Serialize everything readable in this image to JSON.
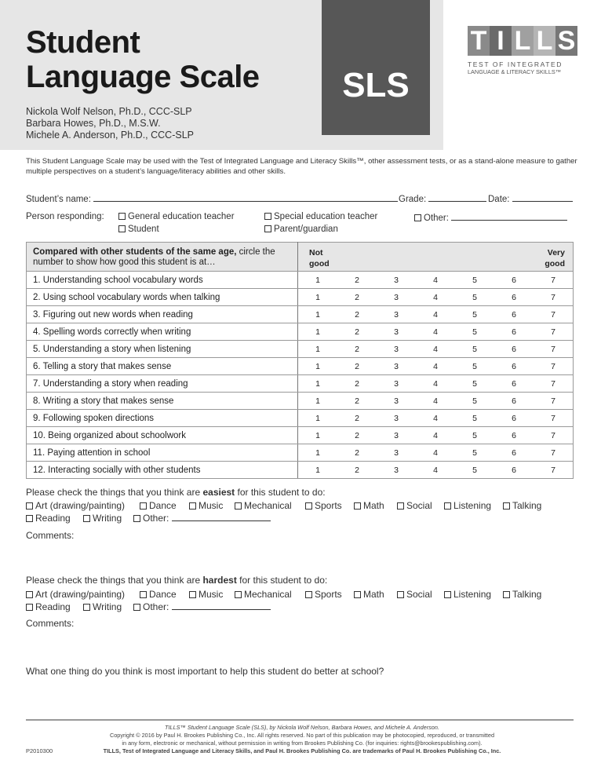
{
  "header": {
    "title_line1": "Student",
    "title_line2": "Language Scale",
    "authors": [
      "Nickola Wolf Nelson, Ph.D., CCC-SLP",
      "Barbara Howes, Ph.D., M.S.W.",
      "Michele A. Anderson, Ph.D., CCC-SLP"
    ],
    "badge": "SLS",
    "logo": {
      "letters": [
        "T",
        "I",
        "L",
        "L",
        "S"
      ],
      "tagline1": "TEST OF INTEGRATED",
      "tagline2": "LANGUAGE & LITERACY SKILLS™",
      "colors": [
        "#8a8a8a",
        "#6a6a6a",
        "#a0a0a0",
        "#b5b5b5",
        "#777777"
      ]
    }
  },
  "intro": "This Student Language Scale may be used with the Test of Integrated Language and Literacy Skills™, other assessment tests, or as a stand-alone measure to gather multiple perspectives on a student’s language/literacy abilities and other skills.",
  "fields": {
    "student_name": "Student’s name:",
    "grade": "Grade:",
    "date": "Date:",
    "person_responding": "Person responding:",
    "responders": [
      "General education teacher",
      "Special education teacher",
      "Other:",
      "Student",
      "Parent/guardian"
    ]
  },
  "table": {
    "header_bold": "Compared with other students of the same age,",
    "header_rest": " circle the number to show how good this student is at…",
    "low_label_1": "Not",
    "low_label_2": "good",
    "high_label_1": "Very",
    "high_label_2": "good",
    "scale": [
      "1",
      "2",
      "3",
      "4",
      "5",
      "6",
      "7"
    ],
    "items": [
      "1. Understanding school vocabulary words",
      "2. Using school vocabulary words when talking",
      "3. Figuring out new words when reading",
      "4. Spelling words correctly when writing",
      "5. Understanding a story when listening",
      "6. Telling a story that makes sense",
      "7. Understanding a story when reading",
      "8. Writing a story that makes sense",
      "9. Following spoken directions",
      "10. Being organized about schoolwork",
      "11. Paying attention in school",
      "12. Interacting socially with other students"
    ]
  },
  "easiest": {
    "prompt_pre": "Please check the things that you think are ",
    "prompt_bold": "easiest",
    "prompt_post": " for this student to do:",
    "comments": "Comments:"
  },
  "hardest": {
    "prompt_pre": "Please check the things that you think are ",
    "prompt_bold": "hardest",
    "prompt_post": " for this student to do:",
    "comments": "Comments:"
  },
  "activities": [
    "Art (drawing/painting)",
    "Dance",
    "Music",
    "Mechanical",
    "Sports",
    "Math",
    "Social",
    "Listening",
    "Talking",
    "Reading",
    "Writing",
    "Other:"
  ],
  "question": "What one thing do you think is most important to help this student do better at school?",
  "footer": {
    "line1": "TILLS™ Student Language Scale (SLS), by Nickola Wolf Nelson, Barbara Howes, and Michele A. Anderson.",
    "line2": "Copyright © 2016 by Paul H. Brookes Publishing Co., Inc. All rights reserved. No part of this publication may be photocopied, reproduced, or transmitted",
    "line3": "in any form, electronic or mechanical, without permission in writing from Brookes Publishing Co. (for inquiries: rights@brookespublishing.com).",
    "line4": "TILLS, Test of Integrated Language and Literacy Skills, and Paul H. Brookes Publishing Co. are trademarks of Paul H. Brookes Publishing Co., Inc.",
    "code": "P2010300"
  }
}
